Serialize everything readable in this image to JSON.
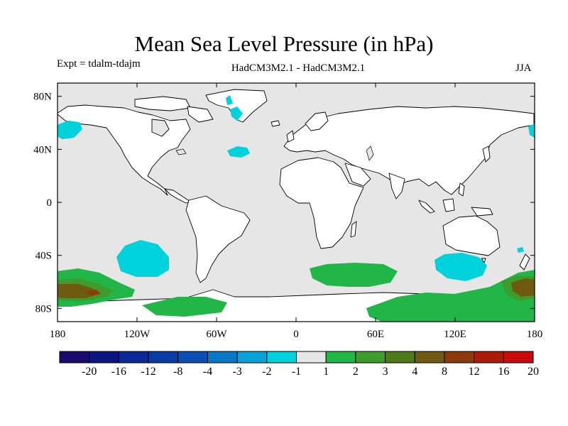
{
  "title": "Mean Sea Level Pressure (in hPa)",
  "experiment": "Expt = tdalm-tdajm",
  "model_label": "HadCM3M2.1 - HadCM3M2.1",
  "season": "JJA",
  "map": {
    "lat_ticks": [
      "80N",
      "40N",
      "0",
      "40S",
      "80S"
    ],
    "lon_ticks": [
      "180",
      "120W",
      "60W",
      "0",
      "60E",
      "120E",
      "180"
    ],
    "lat_values": [
      80,
      40,
      0,
      -40,
      -80
    ],
    "lon_values": [
      -180,
      -120,
      -60,
      0,
      60,
      120,
      180
    ],
    "lat_range": [
      -90,
      90
    ],
    "lon_range": [
      -180,
      180
    ],
    "background_color": "#e6e6e6",
    "land_color": "#ffffff",
    "coastline_color": "#000000"
  },
  "colorbar": {
    "boundary_labels": [
      "-20",
      "-16",
      "-12",
      "-8",
      "-4",
      "-3",
      "-2",
      "-1",
      "1",
      "2",
      "3",
      "4",
      "8",
      "12",
      "16",
      "20"
    ],
    "colors": [
      "#1a0a6e",
      "#0c1480",
      "#0a2896",
      "#0a3ca8",
      "#0a50b4",
      "#0a78c8",
      "#0aa0d8",
      "#00d2dc",
      "#e6e6e6",
      "#22b548",
      "#3e9c2c",
      "#4f7a18",
      "#6e5a10",
      "#8c3a0a",
      "#a81c08",
      "#c80a0a"
    ]
  }
}
